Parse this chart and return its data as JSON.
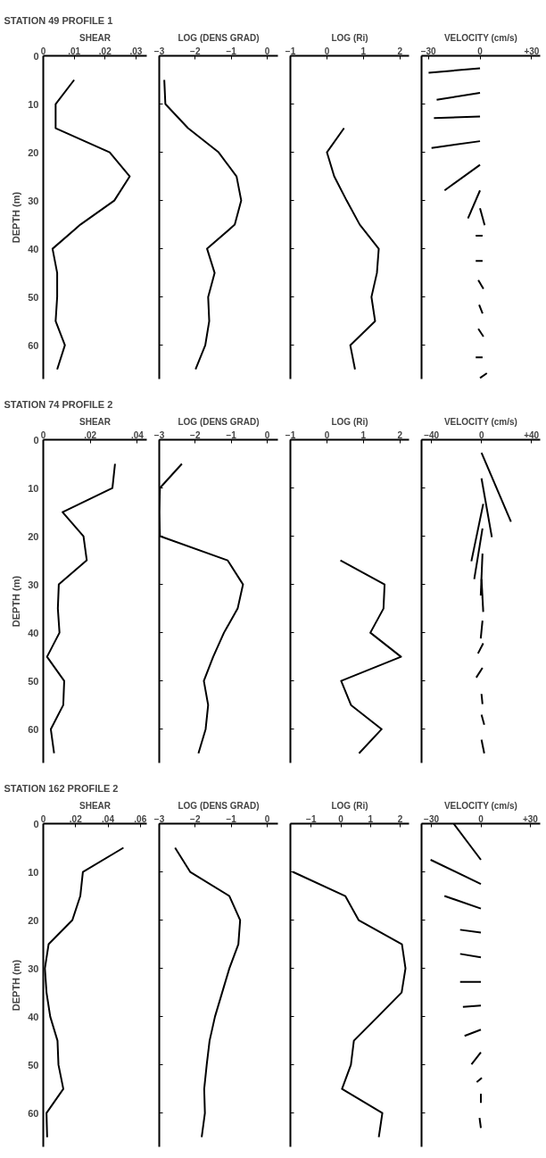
{
  "chart_data": [
    {
      "type": "line",
      "title": "STATION 49   PROFILE 1",
      "xlabel": "SHEAR",
      "ylabel": "DEPTH (m)",
      "xlim": [
        0,
        0.0335
      ],
      "xticks": [
        0,
        {
          "value": 0.01,
          "label": ".01"
        },
        {
          "value": 0.02,
          "label": ".02"
        },
        {
          "value": 0.03,
          "label": ".03"
        }
      ],
      "ylim": [
        67,
        0
      ],
      "yticks": [
        0,
        10,
        20,
        30,
        40,
        50,
        60
      ],
      "x": [
        0.01,
        0.004,
        0.004,
        0.0215,
        0.028,
        0.023,
        0.012,
        0.003,
        0.0045,
        0.0045,
        0.004,
        0.007,
        0.0045
      ],
      "values": [
        5,
        10,
        15,
        20,
        25,
        30,
        35,
        40,
        45,
        50,
        55,
        60,
        65
      ]
    },
    {
      "type": "line",
      "xlabel": "LOG (DENS GRAD)",
      "xlim": [
        -3,
        0.3
      ],
      "xticks": [
        -3,
        -2,
        -1,
        0
      ],
      "ylim": [
        67,
        0
      ],
      "yticks": [
        0,
        10,
        20,
        30,
        40,
        50,
        60
      ],
      "tick_labels": "x",
      "x": [
        -2.86,
        -2.83,
        -2.2,
        -1.35,
        -0.85,
        -0.72,
        -0.9,
        -1.67,
        -1.46,
        -1.64,
        -1.61,
        -1.72,
        -1.99
      ],
      "values": [
        5,
        10,
        15,
        20,
        25,
        30,
        35,
        40,
        45,
        50,
        55,
        60,
        65
      ]
    },
    {
      "type": "line",
      "xlabel": "LOG (Ri)",
      "xlim": [
        -1,
        2.25
      ],
      "xticks": [
        -1,
        0,
        1,
        2
      ],
      "ylim": [
        67,
        0
      ],
      "yticks": [
        0,
        10,
        20,
        30,
        40,
        50,
        60
      ],
      "tick_labels": "x",
      "x": [
        0.47,
        0,
        0.2,
        0.54,
        0.9,
        1.42,
        1.37,
        1.22,
        1.32,
        0.64,
        0.77
      ],
      "values": [
        15,
        20,
        25,
        30,
        35,
        40,
        45,
        50,
        55,
        60,
        65
      ]
    },
    {
      "type": "line",
      "xlabel": "VELOCITY (cm/s)",
      "xlim": [
        -34,
        35
      ],
      "xticks": [
        -30,
        0,
        {
          "value": 30,
          "label": "+30"
        }
      ],
      "ylim": [
        67,
        0
      ],
      "yticks": [
        0,
        10,
        20,
        30,
        40,
        50,
        60
      ],
      "tick_labels": "x",
      "series": [
        {
          "x": [
            0,
            -29.9
          ],
          "values": [
            2.6,
            3.5
          ]
        },
        {
          "x": [
            0,
            -25.2
          ],
          "values": [
            7.7,
            9.1
          ]
        },
        {
          "x": [
            0,
            -26.8
          ],
          "values": [
            12.6,
            12.9
          ]
        },
        {
          "x": [
            0,
            -28.2
          ],
          "values": [
            17.7,
            19.1
          ]
        },
        {
          "x": [
            0,
            -20.6
          ],
          "values": [
            22.6,
            27.9
          ]
        },
        {
          "x": [
            0,
            -7.0
          ],
          "values": [
            27.9,
            33.7
          ]
        },
        {
          "x": [
            0,
            2.7
          ],
          "values": [
            31.6,
            35.1
          ]
        },
        {
          "x": [
            1.5,
            -2.5
          ],
          "values": [
            37.3,
            37.3
          ]
        },
        {
          "x": [
            1.5,
            -2.5
          ],
          "values": [
            42.5,
            42.5
          ]
        },
        {
          "x": [
            -1,
            2
          ],
          "values": [
            46.5,
            48.3
          ]
        },
        {
          "x": [
            -0.5,
            1.5
          ],
          "values": [
            51.6,
            53.4
          ]
        },
        {
          "x": [
            -1,
            2
          ],
          "values": [
            56.6,
            58.2
          ]
        },
        {
          "x": [
            1.5,
            -2.5
          ],
          "values": [
            62.5,
            62.5
          ]
        },
        {
          "x": [
            0,
            4
          ],
          "values": [
            66.8,
            65.8
          ]
        }
      ]
    },
    {
      "type": "line",
      "title": "STATION 74   PROFILE 2",
      "xlabel": "SHEAR",
      "ylabel": "DEPTH (m)",
      "xlim": [
        0,
        0.044
      ],
      "xticks": [
        0,
        {
          "value": 0.02,
          "label": ".02"
        },
        {
          "value": 0.04,
          "label": ".04"
        }
      ],
      "ylim": [
        67,
        0
      ],
      "yticks": [
        0,
        10,
        20,
        30,
        40,
        50,
        60
      ],
      "x": [
        0.0305,
        0.0294,
        0.0082,
        0.0171,
        0.0185,
        0.0066,
        0.0062,
        0.0069,
        0.0016,
        0.0089,
        0.0085,
        0.0032,
        0.0046
      ],
      "values": [
        5,
        10,
        15,
        20,
        25,
        30,
        35,
        40,
        45,
        50,
        55,
        60,
        65
      ]
    },
    {
      "type": "line",
      "xlabel": "LOG (DENS GRAD)",
      "xlim": [
        -3,
        0.3
      ],
      "xticks": [
        -3,
        -2,
        -1,
        0
      ],
      "ylim": [
        67,
        0
      ],
      "yticks": [
        0,
        10,
        20,
        30,
        40,
        50,
        60
      ],
      "tick_labels": "x",
      "x": [
        -2.37,
        -2.98,
        -3.0,
        -2.98,
        -1.1,
        -0.67,
        -0.82,
        -1.2,
        -1.5,
        -1.76,
        -1.64,
        -1.71,
        -1.91
      ],
      "values": [
        5,
        10,
        15,
        20,
        25,
        30,
        35,
        40,
        45,
        50,
        55,
        60,
        65
      ]
    },
    {
      "type": "line",
      "xlabel": "LOG (Ri)",
      "xlim": [
        -1,
        2.25
      ],
      "xticks": [
        -1,
        0,
        1,
        2
      ],
      "ylim": [
        67,
        0
      ],
      "yticks": [
        0,
        10,
        20,
        30,
        40,
        50,
        60
      ],
      "tick_labels": "x",
      "x": [
        0.37,
        1.58,
        1.55,
        1.19,
        2.03,
        0.39,
        0.66,
        1.5,
        0.88
      ],
      "values": [
        25,
        30,
        35,
        40,
        45,
        50,
        55,
        60,
        65
      ]
    },
    {
      "type": "line",
      "xlabel": "VELOCITY (cm/s)",
      "xlim": [
        -48,
        47
      ],
      "xticks": [
        -40,
        0,
        {
          "value": 40,
          "label": "+40"
        }
      ],
      "ylim": [
        67,
        0
      ],
      "yticks": [
        0,
        10,
        20,
        30,
        40,
        50,
        60
      ],
      "tick_labels": "x",
      "series": [
        {
          "x": [
            0,
            23.6
          ],
          "values": [
            2.7,
            17.0
          ]
        },
        {
          "x": [
            0,
            8.3
          ],
          "values": [
            8.0,
            20.2
          ]
        },
        {
          "x": [
            1.4,
            -8.1
          ],
          "values": [
            13.3,
            25.2
          ]
        },
        {
          "x": [
            0.8,
            -5.8
          ],
          "values": [
            18.4,
            28.9
          ]
        },
        {
          "x": [
            0.8,
            -0.6
          ],
          "values": [
            23.6,
            32.3
          ]
        },
        {
          "x": [
            0,
            1.4
          ],
          "values": [
            28.9,
            35.7
          ]
        },
        {
          "x": [
            0.8,
            -0.6
          ],
          "values": [
            37.5,
            41.2
          ]
        },
        {
          "x": [
            1.4,
            -2.8
          ],
          "values": [
            42.2,
            44.3
          ]
        },
        {
          "x": [
            0.8,
            -4.2
          ],
          "values": [
            47.3,
            49.3
          ]
        },
        {
          "x": [
            0,
            0.8
          ],
          "values": [
            52.7,
            54.8
          ]
        },
        {
          "x": [
            0,
            2.2
          ],
          "values": [
            57.0,
            59.1
          ]
        },
        {
          "x": [
            0,
            2.2
          ],
          "values": [
            62.2,
            65.0
          ]
        }
      ]
    },
    {
      "type": "line",
      "title": "STATION 162   PROFILE 2",
      "xlabel": "SHEAR",
      "ylabel": "DEPTH (m)",
      "xlim": [
        0,
        0.064
      ],
      "xticks": [
        0,
        {
          "value": 0.02,
          "label": ".02"
        },
        {
          "value": 0.04,
          "label": ".04"
        },
        {
          "value": 0.06,
          "label": ".06"
        }
      ],
      "ylim": [
        67,
        0
      ],
      "yticks": [
        0,
        10,
        20,
        30,
        40,
        50,
        60
      ],
      "x": [
        0.0496,
        0.0245,
        0.0229,
        0.018,
        0.0033,
        0.001,
        0.002,
        0.0043,
        0.0088,
        0.0094,
        0.0124,
        0.002,
        0.0024
      ],
      "values": [
        5,
        10,
        15,
        20,
        25,
        30,
        35,
        40,
        45,
        50,
        55,
        60,
        65
      ]
    },
    {
      "type": "line",
      "xlabel": "LOG (DENS GRAD)",
      "xlim": [
        -3,
        0.3
      ],
      "xticks": [
        -3,
        -2,
        -1,
        0
      ],
      "ylim": [
        67,
        0
      ],
      "yticks": [
        0,
        10,
        20,
        30,
        40,
        50,
        60
      ],
      "tick_labels": "x",
      "x": [
        -2.56,
        -2.14,
        -1.05,
        -0.75,
        -0.8,
        -1.05,
        -1.25,
        -1.45,
        -1.6,
        -1.68,
        -1.75,
        -1.73,
        -1.82
      ],
      "values": [
        5,
        10,
        15,
        20,
        25,
        30,
        35,
        40,
        45,
        50,
        55,
        60,
        65
      ]
    },
    {
      "type": "line",
      "xlabel": "LOG (Ri)",
      "xlim": [
        -1.7,
        2.3
      ],
      "xticks": [
        -1,
        0,
        1,
        2
      ],
      "ylim": [
        67,
        0
      ],
      "yticks": [
        0,
        10,
        20,
        30,
        40,
        50,
        60
      ],
      "tick_labels": "x",
      "x": [
        -1.62,
        0.15,
        0.6,
        2.06,
        2.18,
        2.05,
        1.25,
        0.44,
        0.34,
        0.04,
        1.4,
        1.28
      ],
      "values": [
        10,
        15,
        20,
        25,
        30,
        35,
        40,
        45,
        50,
        55,
        60,
        65
      ]
    },
    {
      "type": "line",
      "xlabel": "VELOCITY (cm/s)",
      "xlim": [
        -36,
        36
      ],
      "xticks": [
        -30,
        0,
        {
          "value": 30,
          "label": "+30"
        }
      ],
      "ylim": [
        67,
        0
      ],
      "yticks": [
        0,
        10,
        20,
        30,
        40,
        50,
        60
      ],
      "tick_labels": "x",
      "series": [
        {
          "x": [
            0,
            -16.5
          ],
          "values": [
            7.5,
            0
          ]
        },
        {
          "x": [
            0,
            -30.5
          ],
          "values": [
            12.5,
            7.5
          ]
        },
        {
          "x": [
            0,
            -22.1
          ],
          "values": [
            17.6,
            15.0
          ]
        },
        {
          "x": [
            0,
            -12.6
          ],
          "values": [
            22.6,
            22.0
          ]
        },
        {
          "x": [
            0,
            -12.6
          ],
          "values": [
            27.7,
            27.0
          ]
        },
        {
          "x": [
            0,
            -12.6
          ],
          "values": [
            32.8,
            32.8
          ]
        },
        {
          "x": [
            0,
            -10.9
          ],
          "values": [
            37.7,
            38.0
          ]
        },
        {
          "x": [
            0,
            -9.9
          ],
          "values": [
            42.7,
            44.0
          ]
        },
        {
          "x": [
            0,
            -5.7
          ],
          "values": [
            47.4,
            49.9
          ]
        },
        {
          "x": [
            0.6,
            -2.5
          ],
          "values": [
            52.7,
            53.6
          ]
        },
        {
          "x": [
            0,
            0
          ],
          "values": [
            56.0,
            57.9
          ]
        },
        {
          "x": [
            -0.8,
            0
          ],
          "values": [
            61.0,
            63.1
          ]
        }
      ]
    }
  ]
}
